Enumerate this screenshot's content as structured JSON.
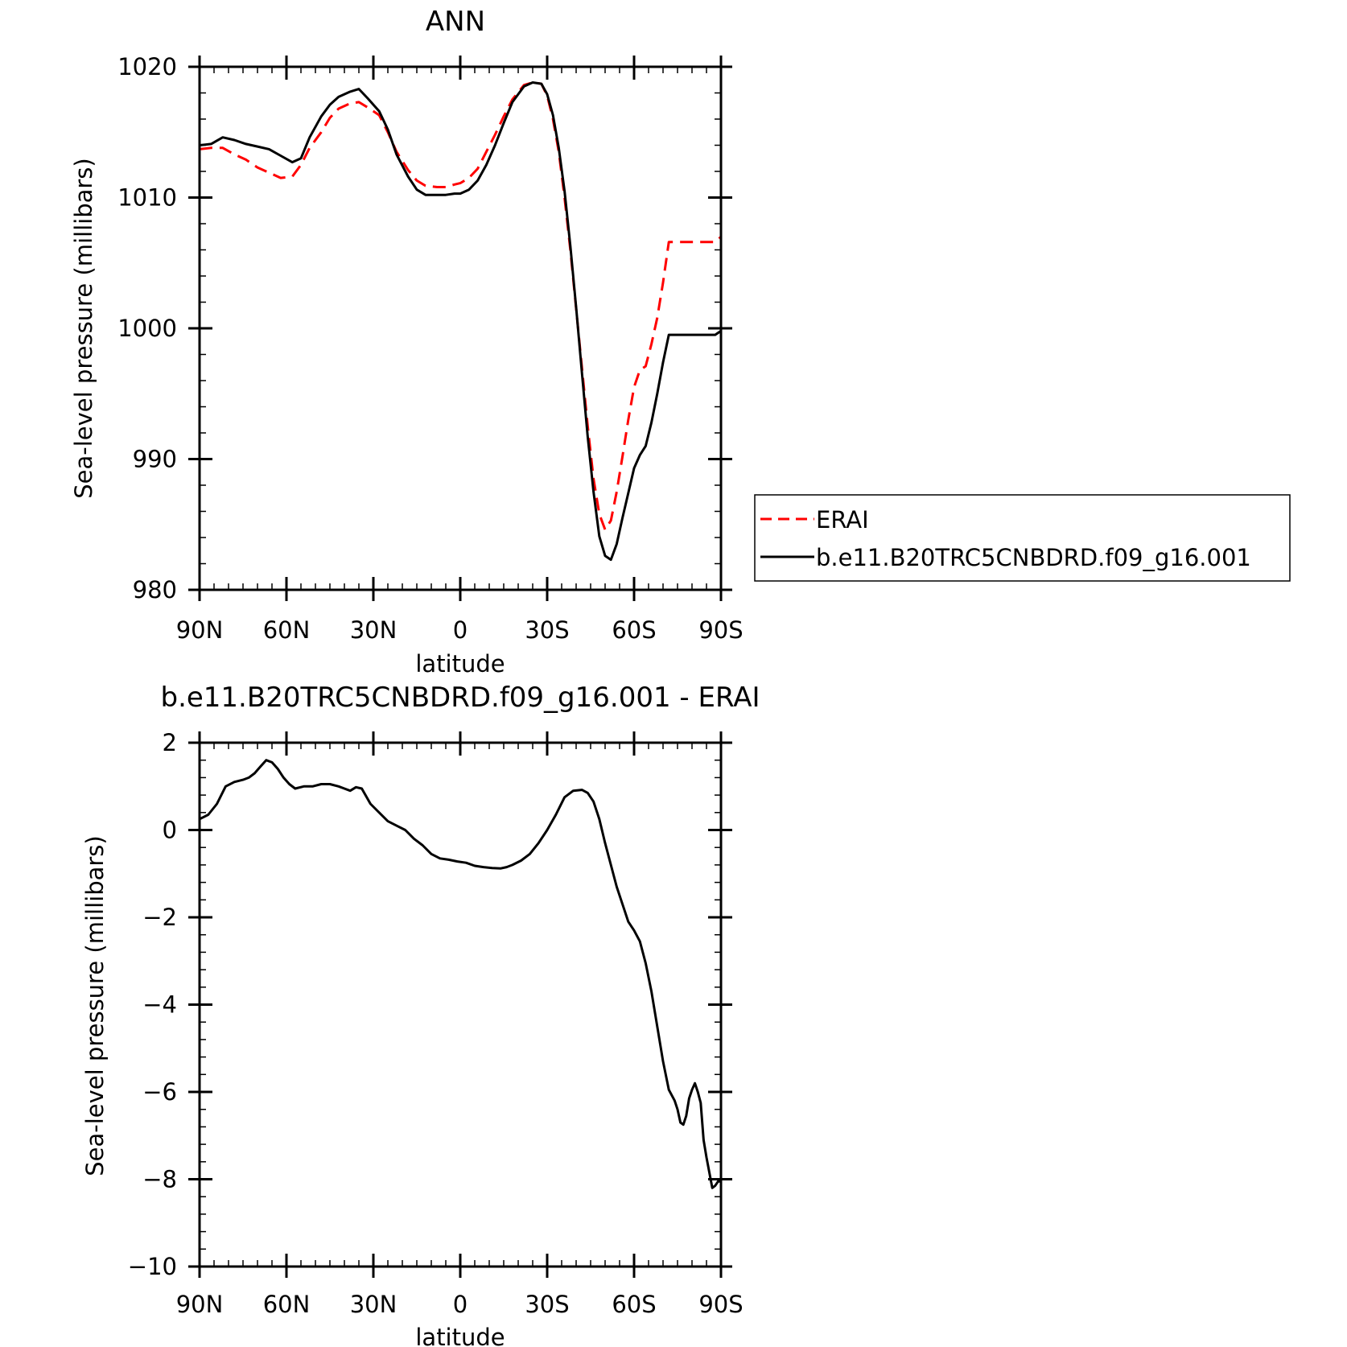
{
  "chart_data": [
    {
      "type": "line",
      "title": "ANN",
      "xlabel": "latitude",
      "ylabel": "Sea-level pressure (millibars)",
      "xlim": [
        90,
        -90
      ],
      "ylim": [
        980,
        1020
      ],
      "x_ticks": [
        90,
        60,
        30,
        0,
        -30,
        -60,
        -90
      ],
      "x_tick_labels": [
        "90N",
        "60N",
        "30N",
        "0",
        "30S",
        "60S",
        "90S"
      ],
      "y_ticks": [
        980,
        990,
        1000,
        1010,
        1020
      ],
      "y_tick_labels": [
        "980",
        "990",
        "1000",
        "1010",
        "1020"
      ],
      "legend_position": "right",
      "series": [
        {
          "name": "ERAI",
          "color": "#ff0000",
          "style": "dashed",
          "x": [
            90,
            86,
            82,
            78,
            74,
            70,
            66,
            62,
            58,
            55,
            52,
            48,
            45,
            42,
            38,
            35,
            32,
            28,
            25,
            22,
            18,
            15,
            12,
            8,
            5,
            2,
            0,
            -3,
            -6,
            -9,
            -12,
            -15,
            -18,
            -22,
            -25,
            -28,
            -30,
            -32,
            -34,
            -36,
            -38,
            -40,
            -42,
            -44,
            -46,
            -48,
            -50,
            -52,
            -54,
            -56,
            -58,
            -60,
            -62,
            -64,
            -66,
            -68,
            -70,
            -72,
            -74,
            -76,
            -78,
            -80,
            -82,
            -84,
            -86,
            -88,
            -90
          ],
          "y": [
            1013.7,
            1013.8,
            1013.8,
            1013.3,
            1012.9,
            1012.3,
            1011.9,
            1011.5,
            1011.6,
            1012.5,
            1013.8,
            1015.0,
            1016.1,
            1016.8,
            1017.2,
            1017.3,
            1016.9,
            1016.3,
            1015.0,
            1013.5,
            1012.1,
            1011.3,
            1010.9,
            1010.8,
            1010.8,
            1011.0,
            1011.1,
            1011.5,
            1012.2,
            1013.5,
            1014.8,
            1016.2,
            1017.5,
            1018.6,
            1018.8,
            1018.7,
            1017.8,
            1016.0,
            1013.5,
            1010.0,
            1006.0,
            1001.5,
            997.0,
            992.5,
            988.5,
            985.8,
            984.6,
            985.3,
            987.5,
            990.2,
            993.0,
            995.5,
            996.8,
            997.1,
            998.8,
            1000.8,
            1003.5,
            1006.6,
            1006.6,
            1006.6,
            1006.6,
            1006.6,
            1006.6,
            1006.6,
            1006.6,
            1006.6,
            1007.0
          ]
        },
        {
          "name": "b.e11.B20TRC5CNBDRD.f09_g16.001",
          "color": "#000000",
          "style": "solid",
          "x": [
            90,
            86,
            82,
            78,
            74,
            70,
            66,
            62,
            58,
            55,
            52,
            48,
            45,
            42,
            38,
            35,
            32,
            28,
            25,
            22,
            18,
            15,
            12,
            8,
            5,
            2,
            0,
            -3,
            -6,
            -9,
            -12,
            -15,
            -18,
            -22,
            -25,
            -28,
            -30,
            -32,
            -34,
            -36,
            -38,
            -40,
            -42,
            -44,
            -46,
            -48,
            -50,
            -52,
            -54,
            -56,
            -58,
            -60,
            -62,
            -64,
            -66,
            -68,
            -70,
            -72,
            -74,
            -76,
            -78,
            -80,
            -82,
            -84,
            -86,
            -88,
            -90
          ],
          "y": [
            1014.0,
            1014.1,
            1014.6,
            1014.4,
            1014.1,
            1013.9,
            1013.7,
            1013.2,
            1012.7,
            1013.0,
            1014.6,
            1016.2,
            1017.1,
            1017.7,
            1018.1,
            1018.3,
            1017.6,
            1016.6,
            1015.2,
            1013.3,
            1011.6,
            1010.6,
            1010.2,
            1010.2,
            1010.2,
            1010.3,
            1010.3,
            1010.6,
            1011.3,
            1012.5,
            1014.0,
            1015.7,
            1017.3,
            1018.5,
            1018.8,
            1018.7,
            1017.9,
            1016.3,
            1013.8,
            1010.5,
            1006.3,
            1001.6,
            996.6,
            991.7,
            987.5,
            984.1,
            982.6,
            982.3,
            983.5,
            985.5,
            987.4,
            989.3,
            990.3,
            991.0,
            992.8,
            995.0,
            997.4,
            999.5,
            999.5,
            999.5,
            999.5,
            999.5,
            999.5,
            999.5,
            999.5,
            999.5,
            999.8
          ]
        }
      ]
    },
    {
      "type": "line",
      "title": "b.e11.B20TRC5CNBDRD.f09_g16.001 - ERAI",
      "xlabel": "latitude",
      "ylabel": "Sea-level pressure (millibars)",
      "xlim": [
        90,
        -90
      ],
      "ylim": [
        -10,
        2
      ],
      "x_ticks": [
        90,
        60,
        30,
        0,
        -30,
        -60,
        -90
      ],
      "x_tick_labels": [
        "90N",
        "60N",
        "30N",
        "0",
        "30S",
        "60S",
        "90S"
      ],
      "y_ticks": [
        -10,
        -8,
        -6,
        -4,
        -2,
        0,
        2
      ],
      "y_tick_labels": [
        "−10",
        "−8",
        "−6",
        "−4",
        "−2",
        "0",
        "2"
      ],
      "series": [
        {
          "color": "#000000",
          "style": "solid",
          "x": [
            90,
            87,
            84,
            81,
            78,
            75,
            73,
            71,
            69,
            67,
            65,
            63,
            61,
            59,
            57,
            54,
            51,
            48,
            45,
            42,
            40,
            38,
            36,
            34,
            31,
            28,
            25,
            22,
            19,
            16,
            13,
            10,
            7,
            4,
            1,
            -2,
            -5,
            -8,
            -11,
            -14,
            -16,
            -18,
            -21,
            -24,
            -27,
            -30,
            -33,
            -36,
            -39,
            -42,
            -44,
            -46,
            -48,
            -50,
            -52,
            -54,
            -56,
            -58,
            -60,
            -62,
            -64,
            -66,
            -68,
            -70,
            -72,
            -74,
            -75,
            -76,
            -77,
            -78,
            -79,
            -80,
            -81,
            -82,
            -83,
            -84,
            -85,
            -86,
            -87,
            -88,
            -89,
            -90
          ],
          "y": [
            0.25,
            0.35,
            0.6,
            1.0,
            1.1,
            1.15,
            1.2,
            1.3,
            1.45,
            1.6,
            1.55,
            1.4,
            1.2,
            1.05,
            0.95,
            1.0,
            1.0,
            1.05,
            1.05,
            1.0,
            0.95,
            0.9,
            0.98,
            0.95,
            0.6,
            0.4,
            0.2,
            0.1,
            0.0,
            -0.2,
            -0.35,
            -0.55,
            -0.65,
            -0.68,
            -0.72,
            -0.75,
            -0.82,
            -0.85,
            -0.87,
            -0.88,
            -0.85,
            -0.8,
            -0.7,
            -0.55,
            -0.3,
            0.0,
            0.35,
            0.75,
            0.9,
            0.92,
            0.85,
            0.65,
            0.25,
            -0.3,
            -0.8,
            -1.3,
            -1.7,
            -2.1,
            -2.3,
            -2.55,
            -3.05,
            -3.7,
            -4.5,
            -5.3,
            -5.95,
            -6.2,
            -6.4,
            -6.7,
            -6.75,
            -6.55,
            -6.15,
            -5.95,
            -5.8,
            -6.0,
            -6.25,
            -7.1,
            -7.5,
            -7.85,
            -8.2,
            -8.15,
            -8.05,
            -8.05
          ]
        }
      ]
    }
  ]
}
